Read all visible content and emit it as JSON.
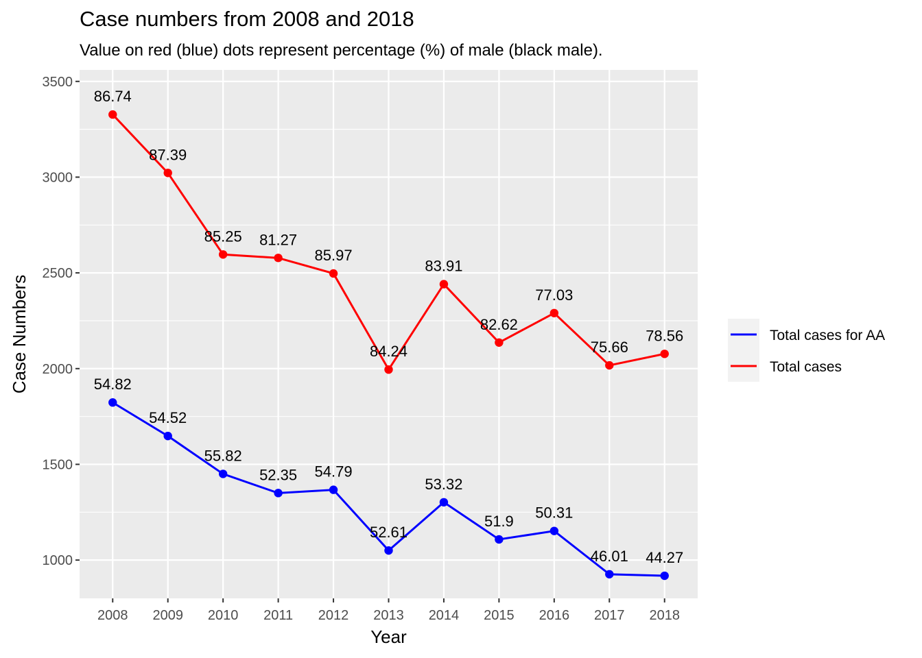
{
  "chart_data": {
    "type": "line",
    "title": "Case numbers from 2008 and 2018",
    "subtitle": "Value on red (blue) dots represent percentage (%) of male (black male).",
    "xlabel": "Year",
    "ylabel": "Case Numbers",
    "x": [
      2008,
      2009,
      2010,
      2011,
      2012,
      2013,
      2014,
      2015,
      2016,
      2017,
      2018
    ],
    "x_tick_labels": [
      "2008",
      "2009",
      "2010",
      "2011",
      "2012",
      "2013",
      "2014",
      "2015",
      "2016",
      "2017",
      "2018"
    ],
    "y_ticks": [
      1000,
      1500,
      2000,
      2500,
      3000,
      3500
    ],
    "y_tick_labels": [
      "1000",
      "1500",
      "2000",
      "2500",
      "3000",
      "3500"
    ],
    "ylim": [
      800,
      3560
    ],
    "xlim": [
      2007.4,
      2018.6
    ],
    "grid": true,
    "legend_position": "right",
    "series": [
      {
        "name": "Total cases for AA",
        "color": "#0000ff",
        "values": [
          1823,
          1648,
          1450,
          1350,
          1367,
          1050,
          1302,
          1108,
          1152,
          926,
          918
        ],
        "labels": [
          "54.82",
          "54.52",
          "55.82",
          "52.35",
          "54.79",
          "52.61",
          "53.32",
          "51.9",
          "50.31",
          "46.01",
          "44.27"
        ]
      },
      {
        "name": "Total cases",
        "color": "#ff0000",
        "values": [
          3327,
          3022,
          2596,
          2578,
          2497,
          1995,
          2441,
          2136,
          2290,
          2017,
          2077
        ],
        "labels": [
          "86.74",
          "87.39",
          "85.25",
          "81.27",
          "85.97",
          "84.24",
          "83.91",
          "82.62",
          "77.03",
          "75.66",
          "78.56"
        ]
      }
    ]
  }
}
